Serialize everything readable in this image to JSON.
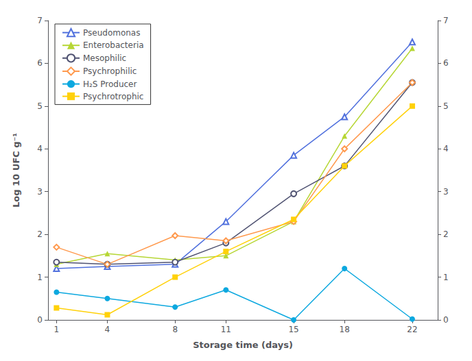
{
  "chart_data": {
    "type": "line",
    "x": [
      1,
      4,
      8,
      11,
      15,
      18,
      22
    ],
    "series": [
      {
        "name": "Pseudomonas",
        "marker": "triangle-open",
        "values": [
          1.2,
          1.25,
          1.3,
          2.3,
          3.85,
          4.75,
          6.5
        ]
      },
      {
        "name": "Enterobacteria",
        "marker": "triangle",
        "values": [
          1.3,
          1.55,
          1.4,
          1.5,
          2.3,
          4.3,
          6.35
        ]
      },
      {
        "name": "Mesophilic",
        "marker": "circle-open",
        "values": [
          1.35,
          1.3,
          1.35,
          1.8,
          2.95,
          3.6,
          5.55
        ]
      },
      {
        "name": "Psychrophilic",
        "marker": "diamond-open",
        "values": [
          1.7,
          1.3,
          1.97,
          1.85,
          2.3,
          4.0,
          5.55
        ]
      },
      {
        "name": "H₂S Producer",
        "marker": "circle",
        "values": [
          0.65,
          0.5,
          0.3,
          0.7,
          0.0,
          1.2,
          0.02
        ]
      },
      {
        "name": "Psychrotrophic",
        "marker": "square",
        "values": [
          0.28,
          0.12,
          1.0,
          1.6,
          2.35,
          3.6,
          5.0
        ]
      }
    ],
    "xlabel": "Storage time (days)",
    "ylabel": "Log 10 UFC g⁻¹",
    "xlim": [
      0.5,
      23.5
    ],
    "xticks": [
      1,
      4,
      8,
      11,
      15,
      18,
      22
    ],
    "ylim": [
      0,
      7
    ],
    "yticks": [
      0,
      1,
      2,
      3,
      4,
      5,
      6,
      7
    ],
    "y2lim": [
      0,
      7
    ],
    "y2ticks": [
      0,
      1,
      2,
      3,
      4,
      5,
      6,
      7
    ],
    "grid": false,
    "legend": "upper left"
  }
}
